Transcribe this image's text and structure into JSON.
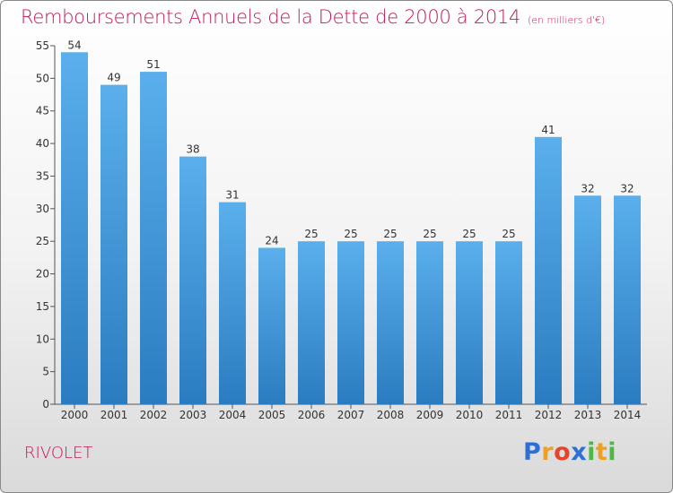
{
  "header": {
    "title": "Remboursements Annuels de la Dette de 2000 à 2014",
    "unit": "(en milliers d'€)"
  },
  "commune": "RIVOLET",
  "logo": {
    "letters": [
      "P",
      "r",
      "o",
      "x",
      "i",
      "t",
      "i"
    ],
    "colors": [
      "#2e6fd6",
      "#f0a020",
      "#e6452c",
      "#2e6fd6",
      "#4db848",
      "#f0a020",
      "#4db848"
    ]
  },
  "chart_data": {
    "type": "bar",
    "title": "Remboursements Annuels de la Dette de 2000 à 2014",
    "unit": "(en milliers d'€)",
    "categories": [
      "2000",
      "2001",
      "2002",
      "2003",
      "2004",
      "2005",
      "2006",
      "2007",
      "2008",
      "2009",
      "2010",
      "2011",
      "2012",
      "2013",
      "2014"
    ],
    "values": [
      54,
      49,
      51,
      38,
      31,
      24,
      25,
      25,
      25,
      25,
      25,
      25,
      41,
      32,
      32
    ],
    "ylim": [
      0,
      55
    ],
    "yticks": [
      0,
      5,
      10,
      15,
      20,
      25,
      30,
      35,
      40,
      45,
      50,
      55
    ],
    "grid": false,
    "bar_color_top": "#5aafec",
    "bar_color_bottom": "#2a7cc0"
  }
}
